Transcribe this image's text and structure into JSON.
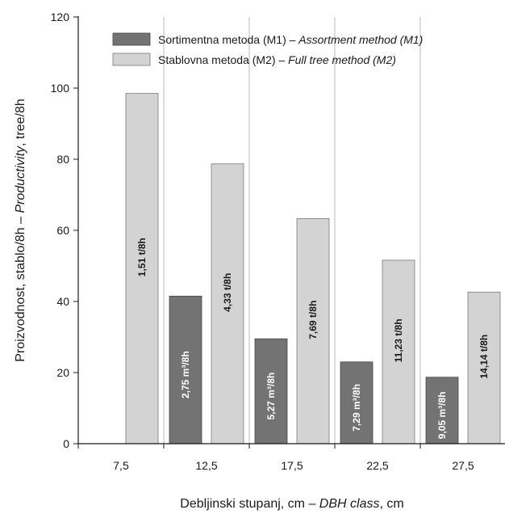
{
  "chart_data": {
    "type": "bar",
    "categories": [
      "7,5",
      "12,5",
      "17,5",
      "22,5",
      "27,5"
    ],
    "series": [
      {
        "name": "Sortimentna metoda (M1) – Assortment method (M1)",
        "name_plain": "Sortimentna metoda (M1) – ",
        "name_italic": "Assortment method (M1)",
        "color": "#737373",
        "values": [
          null,
          41.5,
          29.5,
          23,
          18.7
        ],
        "labels": [
          null,
          "2,75 m³/8h",
          "5,27 m³/8h",
          "7,29 m³/8h",
          "9,05 m³/8h"
        ]
      },
      {
        "name": "Stablovna metoda (M2) – Full tree method (M2)",
        "name_plain": "Stablovna metoda (M2) – ",
        "name_italic": "Full tree method (M2)",
        "color": "#d3d3d3",
        "values": [
          98.5,
          78.7,
          63.3,
          51.6,
          42.6
        ],
        "labels": [
          "1,51 t/8h",
          "4,33 t/8h",
          "7,69 t/8h",
          "11,23 t/8h",
          "14,14 t/8h"
        ]
      }
    ],
    "ylim": [
      0,
      120
    ],
    "yticks": [
      0,
      20,
      40,
      60,
      80,
      100,
      120
    ],
    "ylabel_plain": "Proizvodnost, stablo/8h  –  ",
    "ylabel_italic": "Productivity",
    "ylabel_tail": ", tree/8h",
    "xlabel_plain": "Debljinski stupanj, cm  –  ",
    "xlabel_italic": "DBH class",
    "xlabel_tail": ", cm",
    "grid": "vertical",
    "legend_position": "top"
  }
}
